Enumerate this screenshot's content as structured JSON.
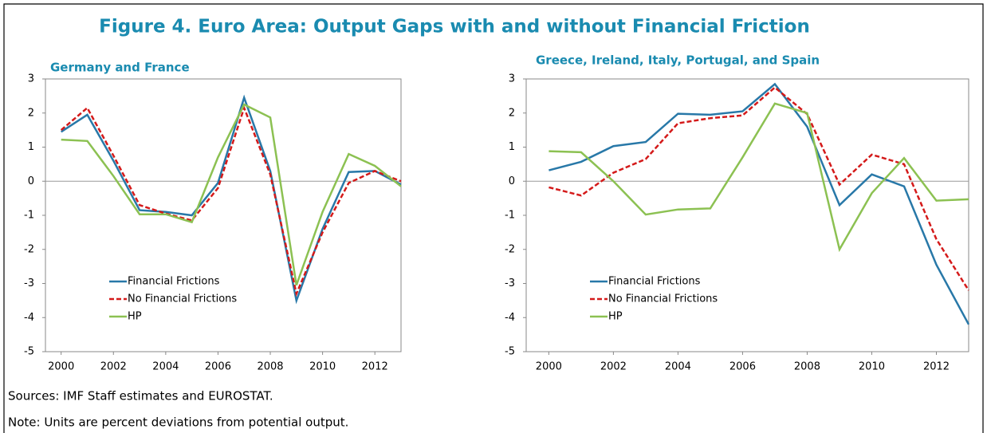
{
  "figure_title": "Figure 4. Euro Area: Output Gaps with and without Financial Friction",
  "sources": "Sources: IMF Staff estimates and EUROSTAT.",
  "note": "Note: Units are percent deviations from potential output.",
  "chart_data": [
    {
      "type": "line",
      "title": "Germany and France",
      "x": [
        2000,
        2001,
        2002,
        2003,
        2004,
        2005,
        2006,
        2007,
        2008,
        2009,
        2010,
        2011,
        2012,
        2013
      ],
      "series": [
        {
          "name": "Financial Frictions",
          "color": "#2878a8",
          "dash": false,
          "values": [
            1.45,
            1.95,
            0.6,
            -0.85,
            -0.9,
            -1.0,
            -0.05,
            2.45,
            0.3,
            -3.5,
            -1.4,
            0.27,
            0.3,
            -0.1
          ]
        },
        {
          "name": "No Financial Frictions",
          "color": "#d41a1a",
          "dash": true,
          "values": [
            1.5,
            2.15,
            0.75,
            -0.7,
            -0.95,
            -1.15,
            -0.2,
            2.15,
            0.2,
            -3.3,
            -1.5,
            -0.05,
            0.3,
            0.0
          ]
        },
        {
          "name": "HP",
          "color": "#8cc152",
          "dash": false,
          "values": [
            1.22,
            1.18,
            0.15,
            -0.97,
            -0.97,
            -1.2,
            0.7,
            2.25,
            1.87,
            -3.05,
            -0.9,
            0.8,
            0.45,
            -0.15
          ]
        }
      ],
      "xlim": [
        1999.4,
        2013
      ],
      "xticks": [
        2000,
        2002,
        2004,
        2006,
        2008,
        2010,
        2012
      ],
      "ylim": [
        -5,
        3
      ],
      "yticks": [
        -5,
        -4,
        -3,
        -2,
        -1,
        0,
        1,
        2,
        3
      ],
      "zero_line": true,
      "legend": "lower left"
    },
    {
      "type": "line",
      "title": "Greece, Ireland, Italy, Portugal, and Spain",
      "x": [
        2000,
        2001,
        2002,
        2003,
        2004,
        2005,
        2006,
        2007,
        2008,
        2009,
        2010,
        2011,
        2012,
        2013
      ],
      "series": [
        {
          "name": "Financial Frictions",
          "color": "#2878a8",
          "dash": false,
          "values": [
            0.32,
            0.57,
            1.03,
            1.15,
            1.98,
            1.95,
            2.05,
            2.85,
            1.6,
            -0.7,
            0.2,
            -0.15,
            -2.45,
            -4.2
          ]
        },
        {
          "name": "No Financial Frictions",
          "color": "#d41a1a",
          "dash": true,
          "values": [
            -0.18,
            -0.42,
            0.25,
            0.65,
            1.7,
            1.85,
            1.93,
            2.75,
            1.97,
            -0.1,
            0.78,
            0.5,
            -1.7,
            -3.2
          ]
        },
        {
          "name": "HP",
          "color": "#8cc152",
          "dash": false,
          "values": [
            0.88,
            0.85,
            0.0,
            -0.98,
            -0.83,
            -0.8,
            0.7,
            2.28,
            2.0,
            -2.0,
            -0.35,
            0.68,
            -0.57,
            -0.53
          ]
        }
      ],
      "xlim": [
        1999.3,
        2013
      ],
      "xticks": [
        2000,
        2002,
        2004,
        2006,
        2008,
        2010,
        2012
      ],
      "ylim": [
        -5,
        3
      ],
      "yticks": [
        -5,
        -4,
        -3,
        -2,
        -1,
        0,
        1,
        2,
        3
      ],
      "zero_line": true,
      "legend": "lower left"
    }
  ]
}
